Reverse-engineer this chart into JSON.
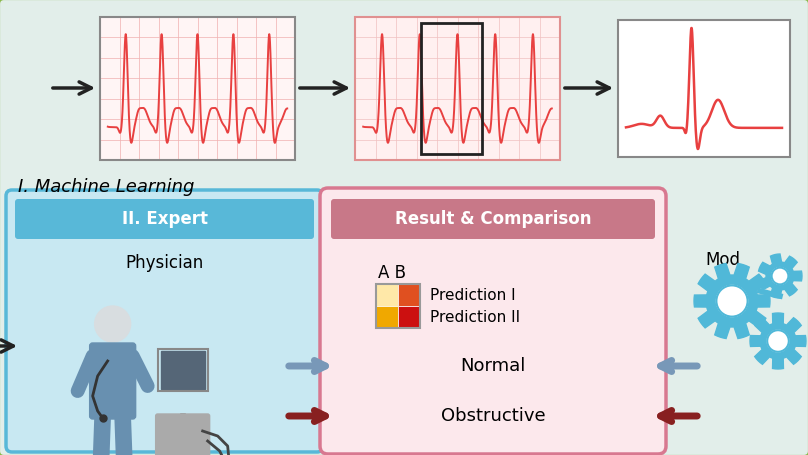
{
  "bg_color": "#e2eeea",
  "outer_border_color": "#8ab84a",
  "top_bg": "#ddeee8",
  "ml_label": "I. Machine Learning",
  "expert_box_bg": "#c8e8f2",
  "expert_box_border": "#58b8d8",
  "expert_header_bg": "#58b8d8",
  "expert_header_text": "II. Expert",
  "expert_subtext": "Physician",
  "result_box_bg": "#fce8ec",
  "result_box_border": "#d87890",
  "result_header_bg": "#c87888",
  "result_header_text": "Result & Comparison",
  "result_ab_label": "A B",
  "result_pred1": "Prediction I",
  "result_pred2": "Prediction II",
  "result_normal": "Normal",
  "result_obstructive": "Obstructive",
  "model_label": "Mod",
  "arrow_blue": "#7898b8",
  "arrow_darkred": "#882020",
  "ecg_color": "#e84040",
  "ecg_grid_color": "#f0b0b0",
  "ecg1_bg": "#fff5f5",
  "ecg2_bg": "#fff0f0",
  "ecg3_bg": "#ffffff",
  "gear_color": "#50b8d8"
}
